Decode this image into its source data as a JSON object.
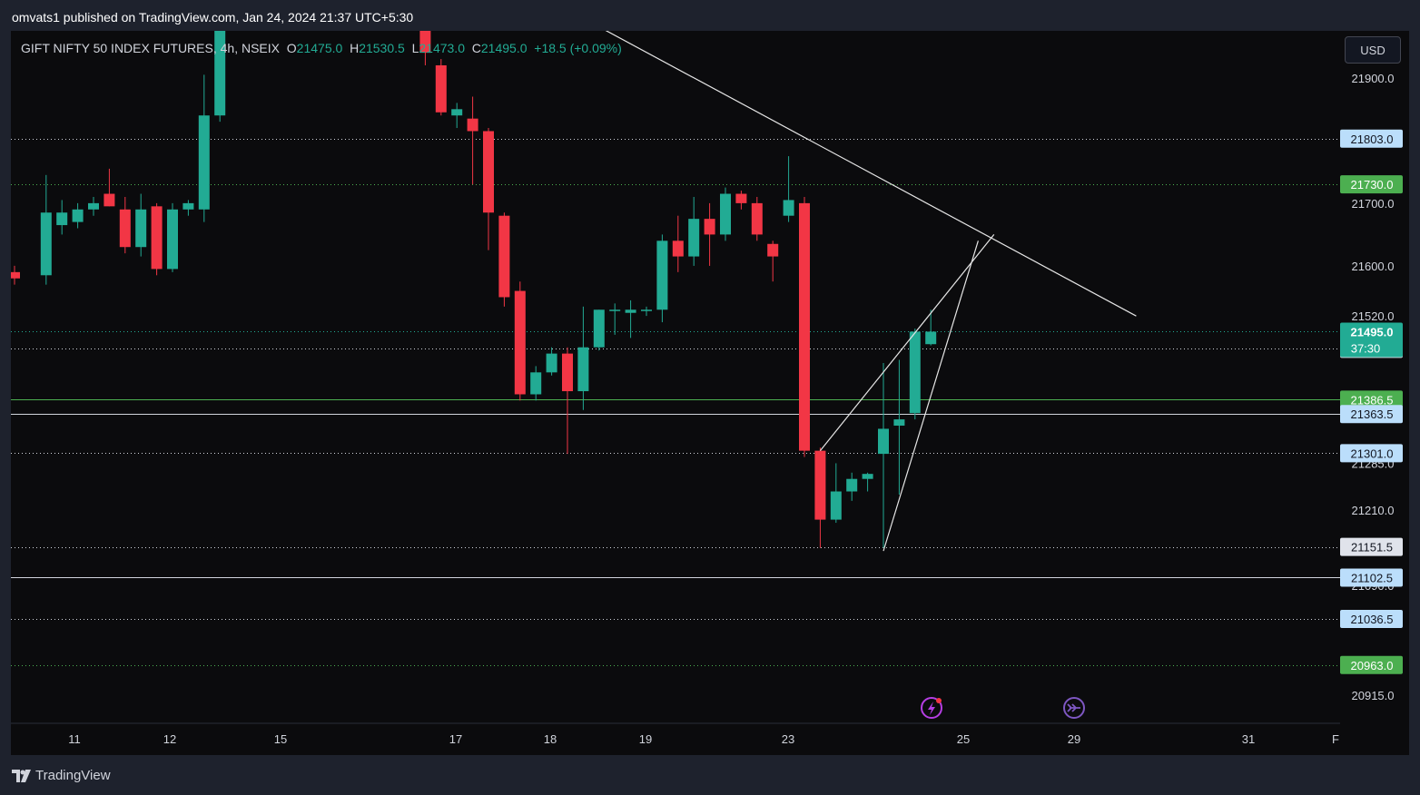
{
  "header": {
    "publish_text": "omvats1 published on TradingView.com, Jan 24, 2024 21:37 UTC+5:30"
  },
  "legend": {
    "symbol": "GIFT NIFTY 50 INDEX FUTURES, 4h, NSEIX",
    "open_label": "O",
    "open": "21475.0",
    "high_label": "H",
    "high": "21530.5",
    "low_label": "L",
    "low": "21473.0",
    "close_label": "C",
    "close": "21495.0",
    "change": "+18.5 (+0.09%)"
  },
  "currency_button": "USD",
  "footer": {
    "brand": "TradingView"
  },
  "colors": {
    "background": "#0b0b0d",
    "up": "#22ab94",
    "down": "#f23645",
    "trendline": "#e6e6e6"
  },
  "chart_data": {
    "type": "candlestick",
    "timeframe": "4h",
    "ylim": [
      20870,
      21975
    ],
    "y_ticks": [
      "21900.0",
      "21700.0",
      "21600.0",
      "21520.0",
      "21285.0",
      "21210.0",
      "21090.0",
      "20915.0"
    ],
    "x_ticks": [
      "11",
      "12",
      "15",
      "17",
      "18",
      "19",
      "23",
      "25",
      "29",
      "31",
      "F"
    ],
    "candles": [
      {
        "i": 0,
        "o": 21590,
        "h": 21600,
        "l": 21570,
        "c": 21580
      },
      {
        "i": 2,
        "o": 21585,
        "h": 21745,
        "l": 21570,
        "c": 21685
      },
      {
        "i": 3,
        "o": 21665,
        "h": 21705,
        "l": 21650,
        "c": 21685
      },
      {
        "i": 4,
        "o": 21670,
        "h": 21700,
        "l": 21660,
        "c": 21690
      },
      {
        "i": 5,
        "o": 21690,
        "h": 21710,
        "l": 21680,
        "c": 21700
      },
      {
        "i": 6,
        "o": 21715,
        "h": 21755,
        "l": 21695,
        "c": 21695
      },
      {
        "i": 7,
        "o": 21690,
        "h": 21710,
        "l": 21620,
        "c": 21630
      },
      {
        "i": 8,
        "o": 21630,
        "h": 21715,
        "l": 21615,
        "c": 21690
      },
      {
        "i": 9,
        "o": 21695,
        "h": 21700,
        "l": 21585,
        "c": 21595
      },
      {
        "i": 10,
        "o": 21595,
        "h": 21700,
        "l": 21590,
        "c": 21690
      },
      {
        "i": 11,
        "o": 21690,
        "h": 21705,
        "l": 21680,
        "c": 21700
      },
      {
        "i": 12,
        "o": 21690,
        "h": 21905,
        "l": 21670,
        "c": 21840
      },
      {
        "i": 13,
        "o": 21840,
        "h": 22020,
        "l": 21830,
        "c": 21990
      },
      {
        "i": 14,
        "o": 21990,
        "h": 22050,
        "l": 21980,
        "c": 22030
      },
      {
        "i": 15,
        "o": 22030,
        "h": 22060,
        "l": 22010,
        "c": 22040
      },
      {
        "i": 26,
        "o": 22000,
        "h": 22020,
        "l": 21920,
        "c": 21940
      },
      {
        "i": 27,
        "o": 21920,
        "h": 21930,
        "l": 21840,
        "c": 21845
      },
      {
        "i": 28,
        "o": 21840,
        "h": 21860,
        "l": 21820,
        "c": 21850
      },
      {
        "i": 29,
        "o": 21835,
        "h": 21870,
        "l": 21730,
        "c": 21815
      },
      {
        "i": 30,
        "o": 21815,
        "h": 21820,
        "l": 21625,
        "c": 21685
      },
      {
        "i": 31,
        "o": 21680,
        "h": 21685,
        "l": 21535,
        "c": 21550
      },
      {
        "i": 32,
        "o": 21560,
        "h": 21575,
        "l": 21385,
        "c": 21395
      },
      {
        "i": 33,
        "o": 21395,
        "h": 21440,
        "l": 21385,
        "c": 21430
      },
      {
        "i": 34,
        "o": 21430,
        "h": 21470,
        "l": 21425,
        "c": 21460
      },
      {
        "i": 35,
        "o": 21460,
        "h": 21470,
        "l": 21300,
        "c": 21400
      },
      {
        "i": 36,
        "o": 21400,
        "h": 21535,
        "l": 21370,
        "c": 21470
      },
      {
        "i": 37,
        "o": 21470,
        "h": 21530,
        "l": 21465,
        "c": 21530
      },
      {
        "i": 38,
        "o": 21530,
        "h": 21540,
        "l": 21490,
        "c": 21530
      },
      {
        "i": 39,
        "o": 21525,
        "h": 21545,
        "l": 21485,
        "c": 21530
      },
      {
        "i": 40,
        "o": 21528,
        "h": 21535,
        "l": 21520,
        "c": 21530
      },
      {
        "i": 41,
        "o": 21530,
        "h": 21650,
        "l": 21510,
        "c": 21640
      },
      {
        "i": 42,
        "o": 21640,
        "h": 21680,
        "l": 21590,
        "c": 21615
      },
      {
        "i": 43,
        "o": 21615,
        "h": 21710,
        "l": 21600,
        "c": 21675
      },
      {
        "i": 44,
        "o": 21675,
        "h": 21700,
        "l": 21600,
        "c": 21650
      },
      {
        "i": 45,
        "o": 21650,
        "h": 21725,
        "l": 21640,
        "c": 21715
      },
      {
        "i": 46,
        "o": 21715,
        "h": 21720,
        "l": 21690,
        "c": 21700
      },
      {
        "i": 47,
        "o": 21700,
        "h": 21710,
        "l": 21640,
        "c": 21650
      },
      {
        "i": 48,
        "o": 21635,
        "h": 21640,
        "l": 21575,
        "c": 21615
      },
      {
        "i": 49,
        "o": 21680,
        "h": 21775,
        "l": 21670,
        "c": 21705
      },
      {
        "i": 50,
        "o": 21700,
        "h": 21710,
        "l": 21295,
        "c": 21305
      },
      {
        "i": 51,
        "o": 21305,
        "h": 21310,
        "l": 21150,
        "c": 21195
      },
      {
        "i": 52,
        "o": 21195,
        "h": 21285,
        "l": 21190,
        "c": 21240
      },
      {
        "i": 53,
        "o": 21240,
        "h": 21270,
        "l": 21225,
        "c": 21260
      },
      {
        "i": 54,
        "o": 21260,
        "h": 21270,
        "l": 21240,
        "c": 21268
      },
      {
        "i": 55,
        "o": 21300,
        "h": 21445,
        "l": 21150,
        "c": 21340
      },
      {
        "i": 56,
        "o": 21345,
        "h": 21450,
        "l": 21235,
        "c": 21355
      },
      {
        "i": 57,
        "o": 21365,
        "h": 21500,
        "l": 21355,
        "c": 21495
      },
      {
        "i": 58,
        "o": 21475,
        "h": 21530,
        "l": 21473,
        "c": 21495
      }
    ],
    "horizontal_levels": [
      {
        "price": 21803.0,
        "label": "21803.0",
        "style": "dotted",
        "color": "#d1d4dc",
        "tag_bg": "#bbdefb",
        "tag_fg": "#131722"
      },
      {
        "price": 21730.0,
        "label": "21730.0",
        "style": "dotted",
        "color": "#4caf50",
        "tag_bg": "#4caf50",
        "tag_fg": "#ffffff"
      },
      {
        "price": 21467.5,
        "label": "21467.5",
        "style": "dotted",
        "color": "#d1d4dc",
        "tag_bg": "#e0e3eb",
        "tag_fg": "#131722"
      },
      {
        "price": 21386.5,
        "label": "21386.5",
        "style": "solid",
        "color": "#4caf50",
        "tag_bg": "#4caf50",
        "tag_fg": "#ffffff"
      },
      {
        "price": 21363.5,
        "label": "21363.5",
        "style": "solid",
        "color": "#d1d4dc",
        "tag_bg": "#bbdefb",
        "tag_fg": "#131722"
      },
      {
        "price": 21301.0,
        "label": "21301.0",
        "style": "dotted",
        "color": "#d1d4dc",
        "tag_bg": "#bbdefb",
        "tag_fg": "#131722"
      },
      {
        "price": 21151.5,
        "label": "21151.5",
        "style": "dotted",
        "color": "#d1d4dc",
        "tag_bg": "#e0e3eb",
        "tag_fg": "#131722"
      },
      {
        "price": 21102.5,
        "label": "21102.5",
        "style": "solid",
        "color": "#d1d4dc",
        "tag_bg": "#bbdefb",
        "tag_fg": "#131722"
      },
      {
        "price": 21036.5,
        "label": "21036.5",
        "style": "dotted",
        "color": "#d1d4dc",
        "tag_bg": "#bbdefb",
        "tag_fg": "#131722"
      },
      {
        "price": 20963.0,
        "label": "20963.0",
        "style": "dotted",
        "color": "#4caf50",
        "tag_bg": "#4caf50",
        "tag_fg": "#ffffff"
      }
    ],
    "last_price": {
      "price": 21495.0,
      "label": "21495.0",
      "countdown": "37:30"
    },
    "trendlines": [
      {
        "from": {
          "i": 36,
          "p": 21995
        },
        "to": {
          "i": 71,
          "p": 21520
        }
      },
      {
        "from": {
          "i": 51,
          "p": 21305
        },
        "to": {
          "i": 62,
          "p": 21650
        }
      },
      {
        "from": {
          "i": 55,
          "p": 21145
        },
        "to": {
          "i": 61,
          "p": 21640
        }
      }
    ]
  }
}
